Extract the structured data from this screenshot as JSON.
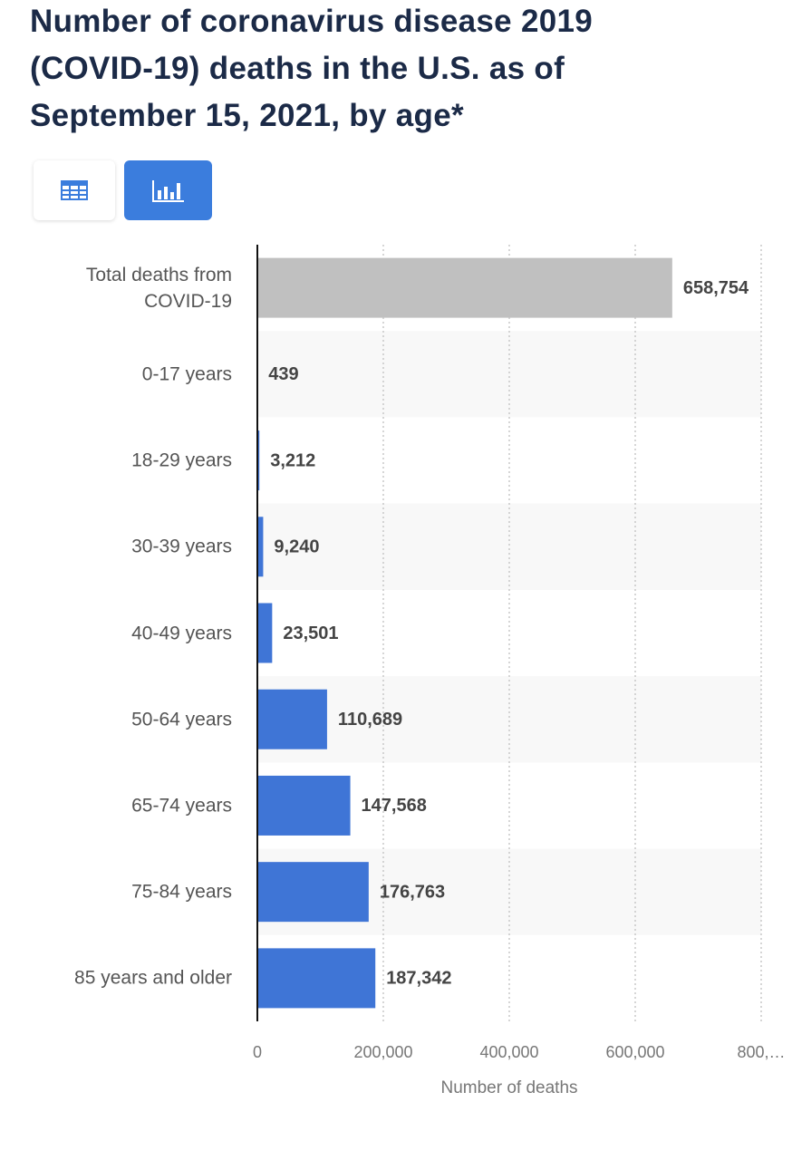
{
  "chart_data": {
    "type": "bar",
    "orientation": "horizontal",
    "title": "Number of coronavirus disease 2019 (COVID-19) deaths in the U.S. as of September 15, 2021, by age*",
    "categories": [
      "Total deaths from COVID-19",
      "0-17 years",
      "18-29 years",
      "30-39 years",
      "40-49 years",
      "50-64 years",
      "65-74 years",
      "75-84 years",
      "85 years and older"
    ],
    "values": [
      658754,
      439,
      3212,
      9240,
      23501,
      110689,
      147568,
      176763,
      187342
    ],
    "value_labels": [
      "658,754",
      "439",
      "3,212",
      "9,240",
      "23,501",
      "110,689",
      "147,568",
      "176,763",
      "187,342"
    ],
    "colors": [
      "#c0c0c0",
      "#3f75d6",
      "#3f75d6",
      "#3f75d6",
      "#3f75d6",
      "#3f75d6",
      "#3f75d6",
      "#3f75d6",
      "#3f75d6"
    ],
    "xlim": [
      0,
      800000
    ],
    "xticks": [
      0,
      {
        "value": 200000,
        "label": "200,000"
      },
      {
        "value": 400000,
        "label": "400,000"
      },
      {
        "value": 600000,
        "label": "600,000"
      },
      {
        "value": 800000,
        "label": "800,…"
      }
    ],
    "xlabel": "Number of deaths",
    "grid": true
  }
}
